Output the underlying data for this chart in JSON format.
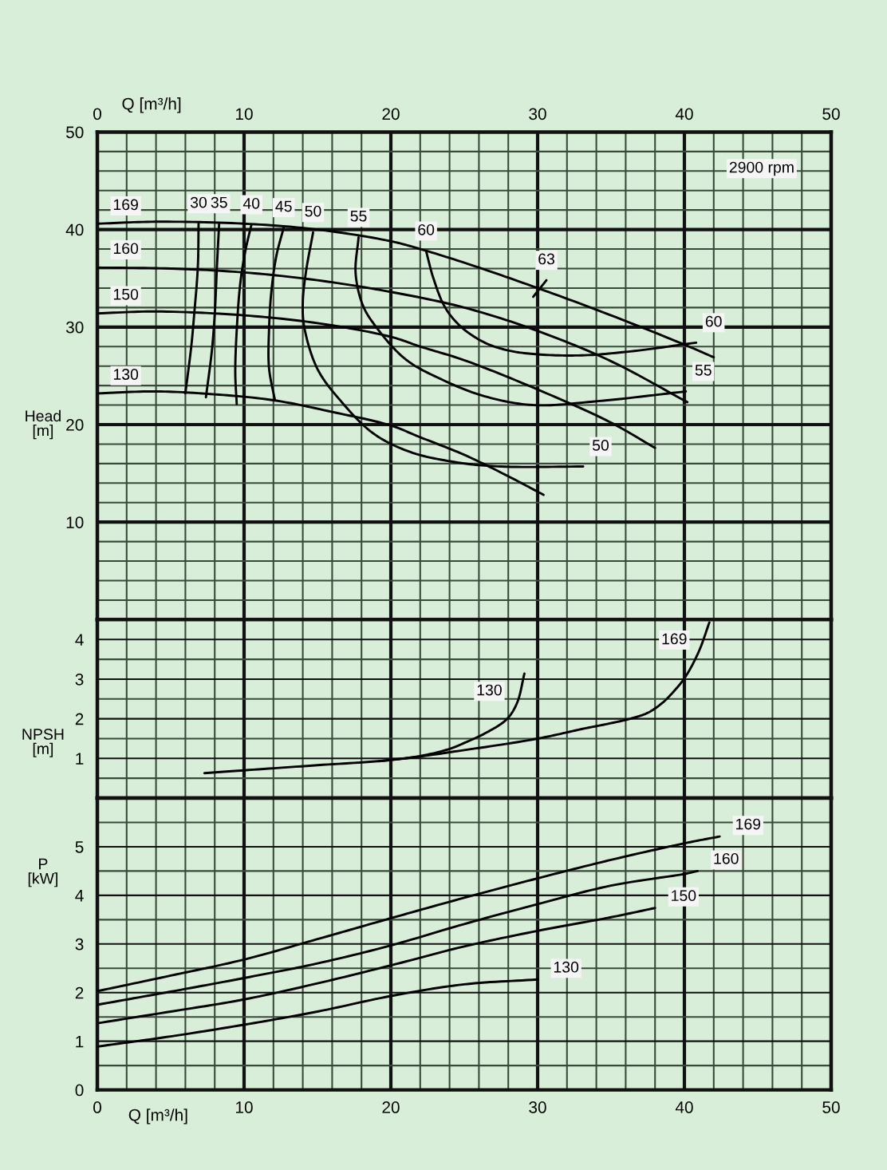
{
  "chart_data": [
    {
      "type": "line",
      "ylabel": "Head\n[m]",
      "x2label": "Q [m³/h]",
      "xlim": [
        0,
        50
      ],
      "x2lim": [
        0,
        50
      ],
      "ylim": [
        0,
        50
      ],
      "tick_labels": "y",
      "grid": true,
      "xticks": [
        0,
        {
          "value": 2,
          "label": null
        },
        {
          "value": 4,
          "label": null
        },
        {
          "value": 6,
          "label": null
        },
        {
          "value": 8,
          "label": null
        },
        10,
        {
          "value": 12,
          "label": null
        },
        {
          "value": 14,
          "label": null
        },
        {
          "value": 16,
          "label": null
        },
        {
          "value": 18,
          "label": null
        },
        20,
        {
          "value": 22,
          "label": null
        },
        {
          "value": 24,
          "label": null
        },
        {
          "value": 26,
          "label": null
        },
        {
          "value": 28,
          "label": null
        },
        30,
        {
          "value": 32,
          "label": null
        },
        {
          "value": 34,
          "label": null
        },
        {
          "value": 36,
          "label": null
        },
        {
          "value": 38,
          "label": null
        },
        40,
        {
          "value": 42,
          "label": null
        },
        {
          "value": 44,
          "label": null
        },
        {
          "value": 46,
          "label": null
        },
        {
          "value": 48,
          "label": null
        },
        50
      ],
      "x2ticks": [
        0,
        10,
        20,
        30,
        40,
        50
      ],
      "yticks": [
        {
          "value": 0,
          "label": null
        },
        {
          "value": 2,
          "label": null
        },
        {
          "value": 4,
          "label": null
        },
        {
          "value": 6,
          "label": null
        },
        {
          "value": 8,
          "label": null
        },
        10,
        {
          "value": 12,
          "label": null
        },
        {
          "value": 14,
          "label": null
        },
        {
          "value": 16,
          "label": null
        },
        {
          "value": 18,
          "label": null
        },
        20,
        {
          "value": 22,
          "label": null
        },
        {
          "value": 24,
          "label": null
        },
        {
          "value": 26,
          "label": null
        },
        {
          "value": 28,
          "label": null
        },
        30,
        {
          "value": 32,
          "label": null
        },
        {
          "value": 34,
          "label": null
        },
        {
          "value": 36,
          "label": null
        },
        {
          "value": 38,
          "label": null
        },
        40,
        {
          "value": 42,
          "label": null
        },
        {
          "value": 44,
          "label": null
        },
        {
          "value": 46,
          "label": null
        },
        {
          "value": 48,
          "label": null
        },
        50
      ],
      "series": [
        {
          "name": "169",
          "color": "#000000",
          "x": [
            0,
            4,
            10,
            15,
            20,
            22,
            25,
            30,
            35,
            40,
            42.0
          ],
          "values": [
            40.6,
            40.8,
            40.6,
            40.0,
            38.8,
            38.0,
            36.6,
            34.0,
            31.2,
            28.2,
            26.9
          ]
        },
        {
          "name": "160",
          "color": "#000000",
          "x": [
            0,
            5,
            10,
            15,
            20,
            25,
            30,
            35,
            40.2
          ],
          "values": [
            36.1,
            36.0,
            35.6,
            34.8,
            33.6,
            32.0,
            29.6,
            26.5,
            22.3
          ]
        },
        {
          "name": "150",
          "color": "#000000",
          "x": [
            0,
            4,
            10,
            15,
            20,
            22,
            25,
            30,
            35,
            38.0
          ],
          "values": [
            31.4,
            31.6,
            31.2,
            30.4,
            29.0,
            28.0,
            26.6,
            23.6,
            20.2,
            17.6
          ]
        },
        {
          "name": "130",
          "color": "#000000",
          "x": [
            0,
            4,
            8,
            12,
            16,
            20,
            22,
            25,
            28,
            30.4
          ],
          "values": [
            23.2,
            23.4,
            23.1,
            22.5,
            21.3,
            19.9,
            18.7,
            16.9,
            14.7,
            12.8
          ]
        },
        {
          "name": "30",
          "color": "#000000",
          "x": [
            6.9,
            6.85,
            6.6,
            6.4,
            6.0
          ],
          "values": [
            40.6,
            36.2,
            31.3,
            28.0,
            23.2
          ]
        },
        {
          "name": "35",
          "color": "#000000",
          "x": [
            8.3,
            8.15,
            8.0,
            7.8,
            7.4
          ],
          "values": [
            40.6,
            36.2,
            31.3,
            27.5,
            22.8
          ]
        },
        {
          "name": "40",
          "color": "#000000",
          "x": [
            10.5,
            10.1,
            9.75,
            9.5,
            9.4,
            9.5
          ],
          "values": [
            40.5,
            37.9,
            34.6,
            29.7,
            25.3,
            22.1
          ]
        },
        {
          "name": "45",
          "color": "#000000",
          "x": [
            12.7,
            12.2,
            11.85,
            11.7,
            11.7,
            12.1
          ],
          "values": [
            40.2,
            37.3,
            33.5,
            29.7,
            25.8,
            22.5
          ]
        },
        {
          "name": "50",
          "color": "#000000",
          "x": [
            14.7,
            14.2,
            14.0,
            14.1,
            15.0,
            16.6,
            18.8,
            21.3,
            24.6,
            27.5,
            33.1
          ],
          "values": [
            39.7,
            35.5,
            32.5,
            30.0,
            25.7,
            22.4,
            19.1,
            17.2,
            16.1,
            15.7,
            15.7
          ]
        },
        {
          "name": "55",
          "color": "#000000",
          "x": [
            17.8,
            17.6,
            18.1,
            19.0,
            21.0,
            23.5,
            26.4,
            29.7,
            34.1,
            40.1
          ],
          "values": [
            39.2,
            35.5,
            32.2,
            30.0,
            26.7,
            24.6,
            22.9,
            22.0,
            22.4,
            23.4
          ]
        },
        {
          "name": "60",
          "color": "#000000",
          "x": [
            22.4,
            22.9,
            23.7,
            24.8,
            26.4,
            28.0,
            30,
            33,
            36.3,
            40.8
          ],
          "values": [
            37.8,
            35.0,
            32.0,
            30.0,
            28.4,
            27.6,
            27.2,
            27.1,
            27.5,
            28.4
          ]
        },
        {
          "name": "63",
          "color": "#000000",
          "x": [
            30.6,
            29.7
          ],
          "values": [
            34.8,
            33.1
          ]
        }
      ],
      "annotations": [
        "2900 rpm",
        {
          "text": "60",
          "x": 40.8,
          "y": 28.4
        },
        {
          "text": "55",
          "x": 40.1,
          "y": 23.4
        },
        {
          "text": "50",
          "x": 33.1,
          "y": 15.7
        }
      ]
    },
    {
      "type": "line",
      "ylabel": "NPSH\n[m]",
      "xlim": [
        0,
        50
      ],
      "ylim": [
        0,
        4.5
      ],
      "tick_labels": "y",
      "grid": true,
      "xticks": [
        0,
        {
          "value": 2,
          "label": null
        },
        {
          "value": 4,
          "label": null
        },
        {
          "value": 6,
          "label": null
        },
        {
          "value": 8,
          "label": null
        },
        10,
        {
          "value": 12,
          "label": null
        },
        {
          "value": 14,
          "label": null
        },
        {
          "value": 16,
          "label": null
        },
        {
          "value": 18,
          "label": null
        },
        20,
        {
          "value": 22,
          "label": null
        },
        {
          "value": 24,
          "label": null
        },
        {
          "value": 26,
          "label": null
        },
        {
          "value": 28,
          "label": null
        },
        30,
        {
          "value": 32,
          "label": null
        },
        {
          "value": 34,
          "label": null
        },
        {
          "value": 36,
          "label": null
        },
        {
          "value": 38,
          "label": null
        },
        40,
        {
          "value": 42,
          "label": null
        },
        {
          "value": 44,
          "label": null
        },
        {
          "value": 46,
          "label": null
        },
        {
          "value": 48,
          "label": null
        },
        50
      ],
      "yticks": [
        {
          "value": 0,
          "label": null
        },
        {
          "value": 0.5,
          "label": null
        },
        1,
        {
          "value": 1.5,
          "label": null
        },
        2,
        {
          "value": 2.5,
          "label": null
        },
        3,
        {
          "value": 3.5,
          "label": null
        },
        4,
        {
          "value": 4.5,
          "label": null
        }
      ],
      "series": [
        {
          "name": "130",
          "color": "#000000",
          "x": [
            19.2,
            22,
            24,
            25,
            26.5,
            27.9,
            28.6,
            29.1
          ],
          "values": [
            0.93,
            1.06,
            1.24,
            1.39,
            1.65,
            1.99,
            2.4,
            3.14
          ]
        },
        {
          "name": "169",
          "color": "#000000",
          "x": [
            7.3,
            10,
            15,
            20,
            25,
            30,
            33,
            36.2,
            37.5,
            38.5,
            39.3,
            40,
            40.6,
            41.1,
            41.7
          ],
          "values": [
            0.63,
            0.7,
            0.83,
            0.96,
            1.21,
            1.5,
            1.74,
            1.99,
            2.15,
            2.4,
            2.7,
            3.02,
            3.4,
            3.8,
            4.43
          ]
        }
      ]
    },
    {
      "type": "line",
      "ylabel": "P\n[kW]",
      "xlabel": "Q [m³/h]",
      "xlim": [
        0,
        50
      ],
      "ylim": [
        0,
        6
      ],
      "grid": true,
      "xticks": [
        0,
        {
          "value": 2,
          "label": null
        },
        {
          "value": 4,
          "label": null
        },
        {
          "value": 6,
          "label": null
        },
        {
          "value": 8,
          "label": null
        },
        10,
        {
          "value": 12,
          "label": null
        },
        {
          "value": 14,
          "label": null
        },
        {
          "value": 16,
          "label": null
        },
        {
          "value": 18,
          "label": null
        },
        20,
        {
          "value": 22,
          "label": null
        },
        {
          "value": 24,
          "label": null
        },
        {
          "value": 26,
          "label": null
        },
        {
          "value": 28,
          "label": null
        },
        30,
        {
          "value": 32,
          "label": null
        },
        {
          "value": 34,
          "label": null
        },
        {
          "value": 36,
          "label": null
        },
        {
          "value": 38,
          "label": null
        },
        40,
        {
          "value": 42,
          "label": null
        },
        {
          "value": 44,
          "label": null
        },
        {
          "value": 46,
          "label": null
        },
        {
          "value": 48,
          "label": null
        },
        50
      ],
      "yticks": [
        0,
        {
          "value": 0.5,
          "label": null
        },
        1,
        {
          "value": 1.5,
          "label": null
        },
        2,
        {
          "value": 2.5,
          "label": null
        },
        3,
        {
          "value": 3.5,
          "label": null
        },
        4,
        {
          "value": 4.5,
          "label": null
        },
        5,
        {
          "value": 5.5,
          "label": null
        },
        {
          "value": 6,
          "label": null
        }
      ],
      "series": [
        {
          "name": "169",
          "color": "#000000",
          "x": [
            0,
            5,
            10,
            15,
            20,
            25,
            30,
            35,
            40,
            42.4
          ],
          "values": [
            2.03,
            2.35,
            2.68,
            3.1,
            3.53,
            3.95,
            4.35,
            4.73,
            5.07,
            5.21
          ]
        },
        {
          "name": "160",
          "color": "#000000",
          "x": [
            0,
            5,
            10,
            15,
            20,
            25,
            30,
            35,
            40,
            40.9
          ],
          "values": [
            1.75,
            2.02,
            2.3,
            2.6,
            2.97,
            3.41,
            3.82,
            4.2,
            4.44,
            4.5
          ]
        },
        {
          "name": "150",
          "color": "#000000",
          "x": [
            0,
            5,
            10,
            15,
            20,
            25,
            30,
            35,
            38
          ],
          "values": [
            1.37,
            1.61,
            1.86,
            2.19,
            2.56,
            2.95,
            3.27,
            3.55,
            3.74
          ]
        },
        {
          "name": "130",
          "color": "#000000",
          "x": [
            0,
            5,
            10,
            15,
            20,
            25,
            30
          ],
          "values": [
            0.89,
            1.1,
            1.34,
            1.61,
            1.93,
            2.17,
            2.27
          ]
        }
      ]
    }
  ]
}
